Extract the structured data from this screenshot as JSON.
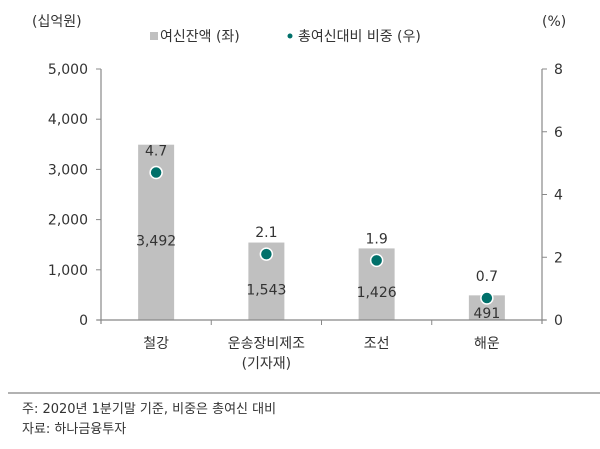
{
  "chart_data": {
    "type": "bar",
    "categories": [
      "철강",
      "운송장비제조\n(기자재)",
      "조선",
      "해운"
    ],
    "series": [
      {
        "name": "여신잔액 (좌)",
        "type": "bar",
        "axis": "left",
        "values": [
          3492,
          1543,
          1426,
          491
        ],
        "labels": [
          "3,492",
          "1,543",
          "1,426",
          "491"
        ],
        "color": "#c0c0c0"
      },
      {
        "name": "총여신대비 비중 (우)",
        "type": "scatter",
        "axis": "right",
        "values": [
          4.7,
          2.1,
          1.9,
          0.7
        ],
        "labels": [
          "4.7",
          "2.1",
          "1.9",
          "0.7"
        ],
        "color": "#00706a"
      }
    ],
    "left_axis": {
      "unit": "(십억원)",
      "ylim": [
        0,
        5000
      ],
      "ticks": [
        "0",
        "1,000",
        "2,000",
        "3,000",
        "4,000",
        "5,000"
      ],
      "tick_values": [
        0,
        1000,
        2000,
        3000,
        4000,
        5000
      ]
    },
    "right_axis": {
      "unit": "(%)",
      "ylim": [
        0,
        8
      ],
      "ticks": [
        "0",
        "2",
        "4",
        "6",
        "8"
      ],
      "tick_values": [
        0,
        2,
        4,
        6,
        8
      ]
    },
    "legend_placement": "top-center",
    "grid": false
  },
  "notes": {
    "note": "주: 2020년 1분기말 기준, 비중은 총여신 대비",
    "source": "자료: 하나금융투자"
  }
}
